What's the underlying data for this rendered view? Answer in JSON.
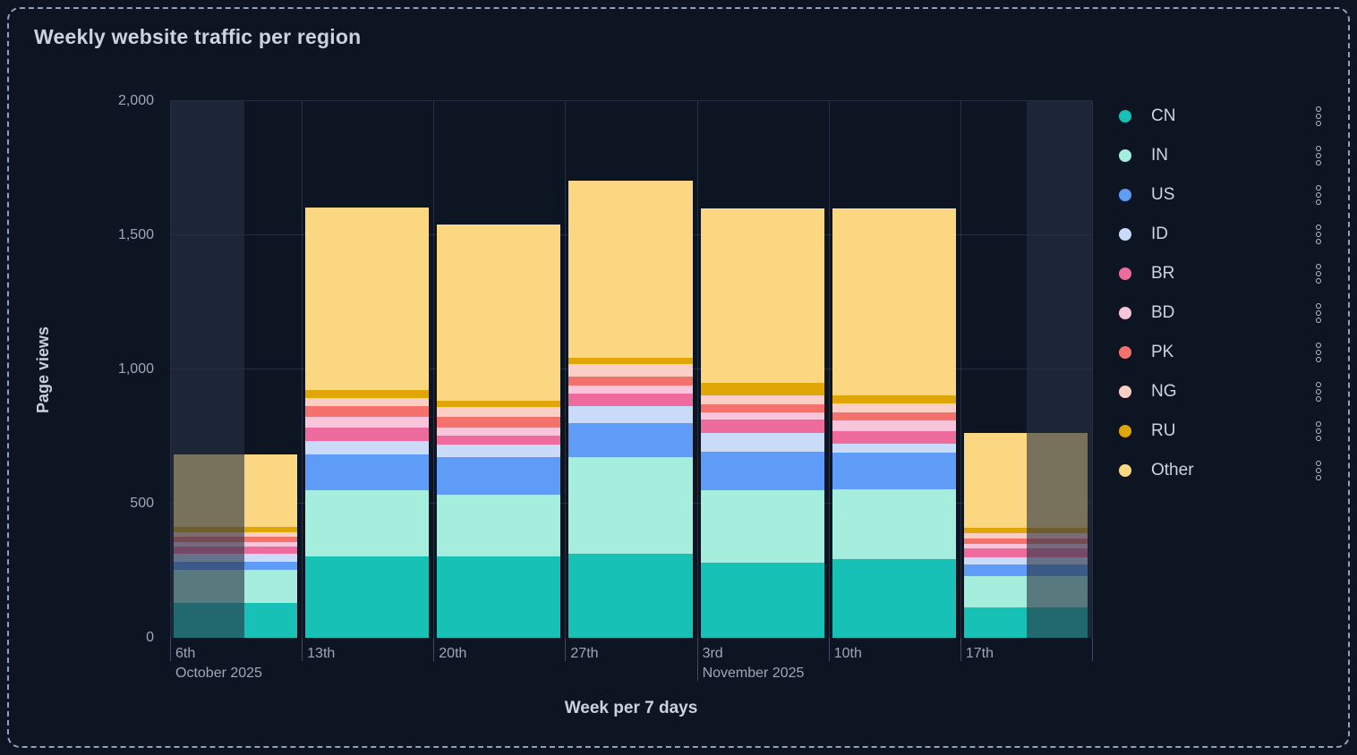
{
  "panel": {
    "title": "Weekly website traffic per region"
  },
  "chart_data": {
    "type": "bar",
    "stacked": true,
    "title": "Weekly website traffic per region",
    "xlabel": "Week per 7 days",
    "ylabel": "Page views",
    "ylim": [
      0,
      2000
    ],
    "grid": true,
    "legend_position": "right",
    "y_ticks": [
      {
        "value": 0,
        "label": "0"
      },
      {
        "value": 500,
        "label": "500"
      },
      {
        "value": 1000,
        "label": "1,000"
      },
      {
        "value": 1500,
        "label": "1,500"
      },
      {
        "value": 2000,
        "label": "2,000"
      }
    ],
    "grid_values": [
      500,
      1000,
      1500,
      2000
    ],
    "categories": [
      {
        "label": "6th",
        "month_label": "October 2025"
      },
      {
        "label": "13th"
      },
      {
        "label": "20th"
      },
      {
        "label": "27th"
      },
      {
        "label": "3rd",
        "month_label": "November 2025"
      },
      {
        "label": "10th"
      },
      {
        "label": "17th"
      }
    ],
    "series": [
      {
        "name": "CN",
        "color": "#18C1B5",
        "values": [
          130,
          305,
          305,
          315,
          280,
          295,
          115
        ]
      },
      {
        "name": "IN",
        "color": "#A5EDDD",
        "values": [
          122,
          245,
          230,
          360,
          270,
          260,
          115
        ]
      },
      {
        "name": "US",
        "color": "#5E9CF8",
        "values": [
          33,
          135,
          140,
          125,
          145,
          135,
          45
        ]
      },
      {
        "name": "ID",
        "color": "#C9DBF9",
        "values": [
          29,
          47,
          45,
          65,
          70,
          35,
          25
        ]
      },
      {
        "name": "BR",
        "color": "#EE6C9D",
        "values": [
          27,
          50,
          35,
          45,
          50,
          45,
          35
        ]
      },
      {
        "name": "BD",
        "color": "#F8C5DB",
        "values": [
          15,
          40,
          30,
          30,
          25,
          40,
          15
        ]
      },
      {
        "name": "PK",
        "color": "#F5716B",
        "values": [
          22,
          40,
          40,
          35,
          30,
          30,
          20
        ]
      },
      {
        "name": "NG",
        "color": "#FBCEC6",
        "values": [
          17,
          30,
          35,
          45,
          35,
          35,
          20
        ]
      },
      {
        "name": "RU",
        "color": "#E0A606",
        "values": [
          20,
          30,
          25,
          25,
          45,
          30,
          20
        ]
      },
      {
        "name": "Other",
        "color": "#FAD780",
        "values": [
          270,
          680,
          655,
          660,
          650,
          695,
          355
        ]
      }
    ],
    "dim_regions_pct": [
      [
        0,
        8.1
      ],
      [
        92.9,
        100
      ]
    ]
  },
  "colors": {
    "background": "#0D1422",
    "panel_border": "#8FA1BC",
    "dim_overlay": "rgba(40,50,68,0.62)",
    "grid_line": "rgba(157,178,217,0.17)",
    "text_primary": "#CBD3DF",
    "text_secondary": "#9CA8BA"
  },
  "icons": {
    "legend_item_menu": "kebab-menu-icon"
  }
}
